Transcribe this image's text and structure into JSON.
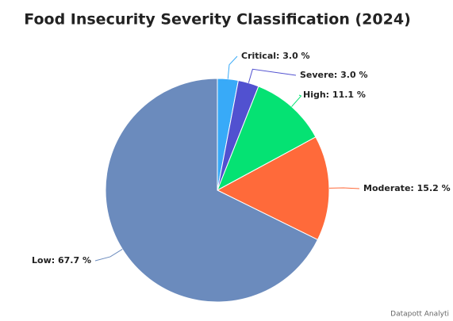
{
  "chart_data": {
    "type": "pie",
    "title": "Food Insecurity Severity Classification (2024)",
    "values": [
      3.0,
      3.0,
      11.1,
      15.2,
      67.7
    ],
    "value_labels": [
      "Critical: 3.0 %",
      "Severe: 3.0 %",
      "High: 11.1 %",
      "Moderate: 15.2 %",
      "Low: 67.7 %"
    ],
    "colors": [
      "#38aaf8",
      "#5151d0",
      "#05e273",
      "#ff6a3a",
      "#6b8bbd"
    ],
    "watermark": "Datapott Analyti"
  }
}
